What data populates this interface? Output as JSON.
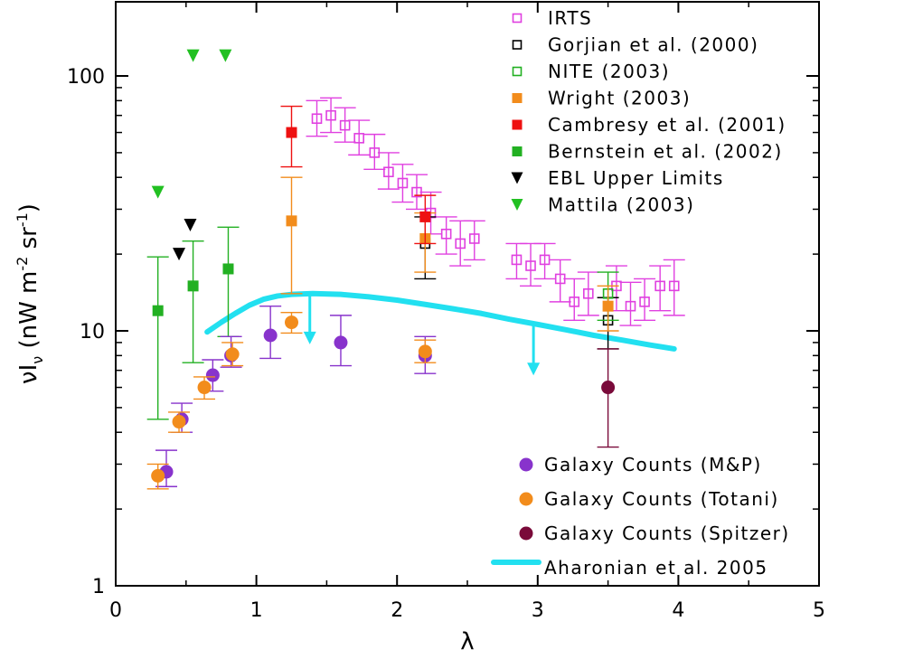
{
  "chart_data": {
    "type": "scatter",
    "title": "",
    "xlabel": "λ",
    "ylabel_main": "νI",
    "ylabel_sub": "ν",
    "ylabel_units": "(nW m",
    "ylabel_units_exp1": "-2",
    "ylabel_units_mid": " sr",
    "ylabel_units_exp2": "-1",
    "ylabel_units_end": ")",
    "xlim": [
      0,
      5
    ],
    "ylim": [
      1,
      200
    ],
    "yscale": "log",
    "x_ticks": [
      0,
      1,
      2,
      3,
      4,
      5
    ],
    "x_tick_labels": [
      "0",
      "1",
      "2",
      "3",
      "4",
      "5"
    ],
    "y_ticks": [
      1,
      10,
      100
    ],
    "y_tick_labels": [
      "1",
      "10",
      "100"
    ],
    "legend_top": [
      {
        "label": "IRTS",
        "marker": "square-open",
        "color": "#e040e0"
      },
      {
        "label": "Gorjian et al. (2000)",
        "marker": "square-open",
        "color": "#000000"
      },
      {
        "label": "NITE (2003)",
        "marker": "square-open",
        "color": "#22b022"
      },
      {
        "label": "Wright (2003)",
        "marker": "square",
        "color": "#f28c1c"
      },
      {
        "label": "Cambresy et al. (2001)",
        "marker": "square",
        "color": "#ee1111"
      },
      {
        "label": "Bernstein et al. (2002)",
        "marker": "square",
        "color": "#22b022"
      },
      {
        "label": "EBL Upper Limits",
        "marker": "triangle-down",
        "color": "#000000"
      },
      {
        "label": "Mattila (2003)",
        "marker": "triangle-down",
        "color": "#22c022"
      }
    ],
    "legend_bottom": [
      {
        "label": "Galaxy Counts (M&P)",
        "marker": "circle",
        "color": "#8833cc"
      },
      {
        "label": "Galaxy Counts (Totani)",
        "marker": "circle",
        "color": "#f28c1c"
      },
      {
        "label": "Galaxy Counts (Spitzer)",
        "marker": "circle",
        "color": "#7a0a3a"
      },
      {
        "label": "Aharonian et al. 2005",
        "marker": "line",
        "color": "#22e0f0"
      }
    ],
    "series": [
      {
        "name": "IRTS",
        "marker": "square-open",
        "color": "#e040e0",
        "points": [
          {
            "x": 1.43,
            "y": 68,
            "lo": 58,
            "hi": 80
          },
          {
            "x": 1.53,
            "y": 70,
            "lo": 60,
            "hi": 82
          },
          {
            "x": 1.63,
            "y": 64,
            "lo": 55,
            "hi": 75
          },
          {
            "x": 1.73,
            "y": 57,
            "lo": 49,
            "hi": 67
          },
          {
            "x": 1.84,
            "y": 50,
            "lo": 43,
            "hi": 59
          },
          {
            "x": 1.94,
            "y": 42,
            "lo": 36,
            "hi": 50
          },
          {
            "x": 2.04,
            "y": 38,
            "lo": 32,
            "hi": 45
          },
          {
            "x": 2.14,
            "y": 35,
            "lo": 30,
            "hi": 41
          },
          {
            "x": 2.24,
            "y": 29,
            "lo": 24,
            "hi": 35
          },
          {
            "x": 2.35,
            "y": 24,
            "lo": 20,
            "hi": 28
          },
          {
            "x": 2.45,
            "y": 22,
            "lo": 18,
            "hi": 27
          },
          {
            "x": 2.55,
            "y": 23,
            "lo": 19,
            "hi": 27
          },
          {
            "x": 2.85,
            "y": 19,
            "lo": 16,
            "hi": 22
          },
          {
            "x": 2.95,
            "y": 18,
            "lo": 15,
            "hi": 22
          },
          {
            "x": 3.05,
            "y": 19,
            "lo": 16,
            "hi": 22
          },
          {
            "x": 3.16,
            "y": 16,
            "lo": 13,
            "hi": 19
          },
          {
            "x": 3.26,
            "y": 13,
            "lo": 11,
            "hi": 16
          },
          {
            "x": 3.36,
            "y": 14,
            "lo": 11.5,
            "hi": 17
          },
          {
            "x": 3.56,
            "y": 15,
            "lo": 12,
            "hi": 18
          },
          {
            "x": 3.66,
            "y": 12.5,
            "lo": 10.5,
            "hi": 15.5
          },
          {
            "x": 3.76,
            "y": 13,
            "lo": 11,
            "hi": 16
          },
          {
            "x": 3.87,
            "y": 15,
            "lo": 12,
            "hi": 18
          },
          {
            "x": 3.97,
            "y": 15,
            "lo": 11.5,
            "hi": 19
          }
        ]
      },
      {
        "name": "Gorjian et al. (2000)",
        "marker": "square-open",
        "color": "#000000",
        "points": [
          {
            "x": 2.2,
            "y": 22,
            "lo": 16,
            "hi": 28
          },
          {
            "x": 3.5,
            "y": 11,
            "lo": 8.5,
            "hi": 13.5
          }
        ]
      },
      {
        "name": "NITE (2003)",
        "marker": "square-open",
        "color": "#22b022",
        "points": [
          {
            "x": 3.5,
            "y": 14,
            "lo": 11,
            "hi": 17
          }
        ]
      },
      {
        "name": "Wright (2003)",
        "marker": "square",
        "color": "#f28c1c",
        "points": [
          {
            "x": 1.25,
            "y": 27,
            "lo": 14,
            "hi": 40
          },
          {
            "x": 2.2,
            "y": 23,
            "lo": 17,
            "hi": 29
          },
          {
            "x": 3.5,
            "y": 12.5,
            "lo": 10,
            "hi": 15
          }
        ]
      },
      {
        "name": "Cambresy et al. (2001)",
        "marker": "square",
        "color": "#ee1111",
        "points": [
          {
            "x": 1.25,
            "y": 60,
            "lo": 44,
            "hi": 76
          },
          {
            "x": 2.2,
            "y": 28,
            "lo": 22,
            "hi": 34
          }
        ]
      },
      {
        "name": "Bernstein et al. (2002)",
        "marker": "square",
        "color": "#22b022",
        "points": [
          {
            "x": 0.3,
            "y": 12,
            "lo": 4.5,
            "hi": 19.5
          },
          {
            "x": 0.55,
            "y": 15,
            "lo": 7.5,
            "hi": 22.5
          },
          {
            "x": 0.8,
            "y": 17.5,
            "lo": 9.5,
            "hi": 25.5
          }
        ]
      },
      {
        "name": "EBL Upper Limits",
        "marker": "triangle-down",
        "color": "#000000",
        "points": [
          {
            "x": 0.45,
            "y": 20
          },
          {
            "x": 0.53,
            "y": 26
          }
        ]
      },
      {
        "name": "Mattila (2003)",
        "marker": "triangle-down",
        "color": "#22c022",
        "points": [
          {
            "x": 0.3,
            "y": 35
          },
          {
            "x": 0.55,
            "y": 120
          },
          {
            "x": 0.78,
            "y": 120
          }
        ]
      },
      {
        "name": "Galaxy Counts (M&P)",
        "marker": "circle",
        "color": "#8833cc",
        "points": [
          {
            "x": 0.36,
            "y": 2.8,
            "lo": 2.45,
            "hi": 3.4
          },
          {
            "x": 0.47,
            "y": 4.5,
            "lo": 4.0,
            "hi": 5.2
          },
          {
            "x": 0.69,
            "y": 6.7,
            "lo": 5.8,
            "hi": 7.7
          },
          {
            "x": 0.82,
            "y": 8.0,
            "lo": 7.2,
            "hi": 9.5
          },
          {
            "x": 1.1,
            "y": 9.6,
            "lo": 7.8,
            "hi": 12.5
          },
          {
            "x": 1.6,
            "y": 9.0,
            "lo": 7.3,
            "hi": 11.5
          },
          {
            "x": 2.2,
            "y": 8.0,
            "lo": 6.8,
            "hi": 9.5
          }
        ]
      },
      {
        "name": "Galaxy Counts (Totani)",
        "marker": "circle",
        "color": "#f28c1c",
        "points": [
          {
            "x": 0.3,
            "y": 2.7,
            "lo": 2.4,
            "hi": 3.0
          },
          {
            "x": 0.45,
            "y": 4.4,
            "lo": 4.0,
            "hi": 4.8
          },
          {
            "x": 0.63,
            "y": 6.0,
            "lo": 5.4,
            "hi": 6.6
          },
          {
            "x": 0.83,
            "y": 8.1,
            "lo": 7.3,
            "hi": 9.0
          },
          {
            "x": 1.25,
            "y": 10.8,
            "lo": 9.8,
            "hi": 11.8
          },
          {
            "x": 2.2,
            "y": 8.3,
            "lo": 7.5,
            "hi": 9.2
          }
        ]
      },
      {
        "name": "Galaxy Counts (Spitzer)",
        "marker": "circle",
        "color": "#7a0a3a",
        "points": [
          {
            "x": 3.5,
            "y": 6.0,
            "lo": 3.5,
            "hi": 8.5
          }
        ]
      }
    ],
    "curve": {
      "name": "Aharonian et al. 2005",
      "color": "#22e0f0",
      "x": [
        0.65,
        0.75,
        0.85,
        0.95,
        1.05,
        1.15,
        1.25,
        1.4,
        1.6,
        1.8,
        2.0,
        2.2,
        2.4,
        2.6,
        2.8,
        3.0,
        3.2,
        3.4,
        3.6,
        3.8,
        3.97
      ],
      "y": [
        9.9,
        10.8,
        11.7,
        12.6,
        13.3,
        13.7,
        13.9,
        14.0,
        13.9,
        13.6,
        13.2,
        12.7,
        12.2,
        11.7,
        11.1,
        10.6,
        10.1,
        9.6,
        9.2,
        8.8,
        8.5
      ]
    },
    "upper_limit_arrows": [
      {
        "x": 1.38,
        "y_from": 14.0,
        "y_to": 9.0
      },
      {
        "x": 2.97,
        "y_from": 10.6,
        "y_to": 6.8
      }
    ]
  }
}
